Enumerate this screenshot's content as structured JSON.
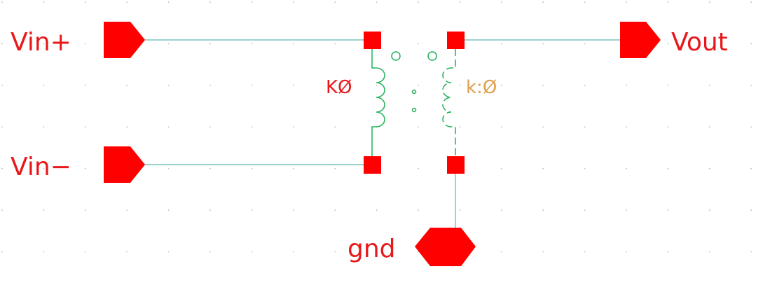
{
  "schematic": {
    "pins": {
      "vin_plus": "Vin+",
      "vin_minus": "Vin−",
      "vout": "Vout",
      "gnd": "gnd"
    },
    "transformer": {
      "instance_name": "KØ",
      "coupling_param": "k:Ø"
    }
  },
  "colors": {
    "pin": "#ff0000",
    "label": "#e8181a",
    "wire": "#5fb8b0",
    "coil": "#22b05a",
    "param": "#e0a050",
    "grid": "#c8c8c8"
  }
}
